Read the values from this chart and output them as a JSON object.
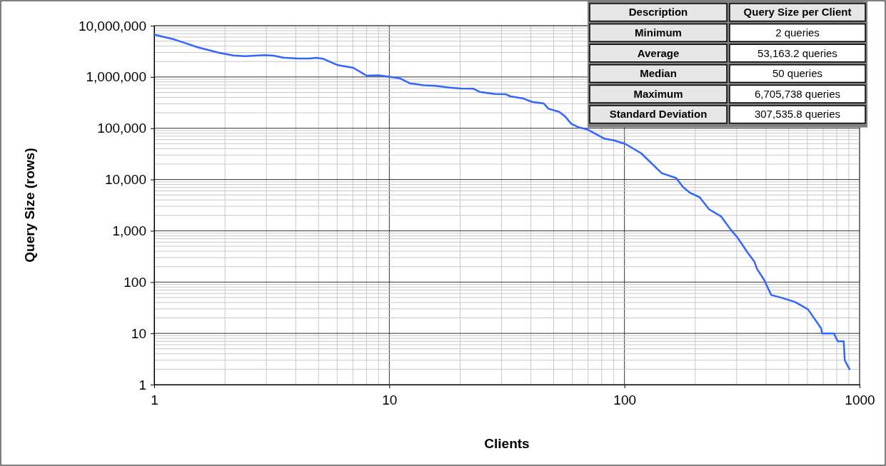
{
  "chart_data": {
    "type": "line",
    "xlabel": "Clients",
    "ylabel": "Query Size (rows)",
    "log": "xy",
    "grid": true,
    "marker": "none",
    "line_style": "solid",
    "xlim": [
      1,
      1000
    ],
    "xticks": [
      1,
      10,
      100,
      1000
    ],
    "ylim": [
      1,
      10000000
    ],
    "yticks": [
      1,
      10,
      100,
      {
        "value": 1000,
        "label": "1,000"
      },
      {
        "value": 10000,
        "label": "10,000"
      },
      {
        "value": 100000,
        "label": "100,000"
      },
      {
        "value": 1000000,
        "label": "1,000,000"
      },
      {
        "value": 10000000,
        "label": "10,000,000"
      }
    ],
    "series": [
      {
        "color": "#3366ff",
        "x": [
          1,
          1.21,
          1.53,
          1.89,
          2.17,
          2.44,
          2.94,
          3.22,
          3.54,
          4.07,
          4.57,
          4.9,
          5.25,
          6.04,
          7.03,
          8.0,
          8.99,
          10.1,
          11.1,
          12.2,
          12.9,
          14.0,
          15.7,
          18.0,
          20.1,
          22.8,
          24.2,
          28.1,
          31.3,
          32.7,
          37.2,
          40.4,
          45.4,
          47.5,
          52.8,
          56,
          59.3,
          63.6,
          69.8,
          82.2,
          90.3,
          101,
          118,
          144,
          166,
          177,
          190,
          209,
          229,
          258,
          283,
          303,
          333,
          357,
          366,
          392,
          421,
          462,
          531,
          603,
          686,
          693,
          778,
          807,
          856,
          865,
          906
        ],
        "values": [
          6700000,
          5450000,
          3800000,
          2960000,
          2630000,
          2550000,
          2660000,
          2600000,
          2390000,
          2290000,
          2290000,
          2370000,
          2250000,
          1700000,
          1510000,
          1060000,
          1080000,
          1000000,
          940000,
          754000,
          730000,
          690000,
          670000,
          620000,
          596000,
          590000,
          513000,
          466000,
          460000,
          419000,
          380000,
          327000,
          304000,
          240000,
          209000,
          169000,
          123000,
          105000,
          94000,
          62700,
          58000,
          49400,
          32300,
          13300,
          10700,
          7200,
          5500,
          4500,
          2630,
          1900,
          1060,
          730,
          384,
          250,
          182,
          112,
          56,
          50,
          41,
          29.5,
          12.6,
          10,
          10,
          7,
          7,
          3,
          2
        ]
      }
    ],
    "annotations": [
      "Description",
      "Query Size per Client",
      "Minimum",
      "2 queries",
      "Average",
      "53,163.2 queries",
      "Median",
      "50 queries",
      "Maximum",
      "6,705,738 queries",
      "Standard Deviation",
      "307,535.8 queries"
    ]
  }
}
